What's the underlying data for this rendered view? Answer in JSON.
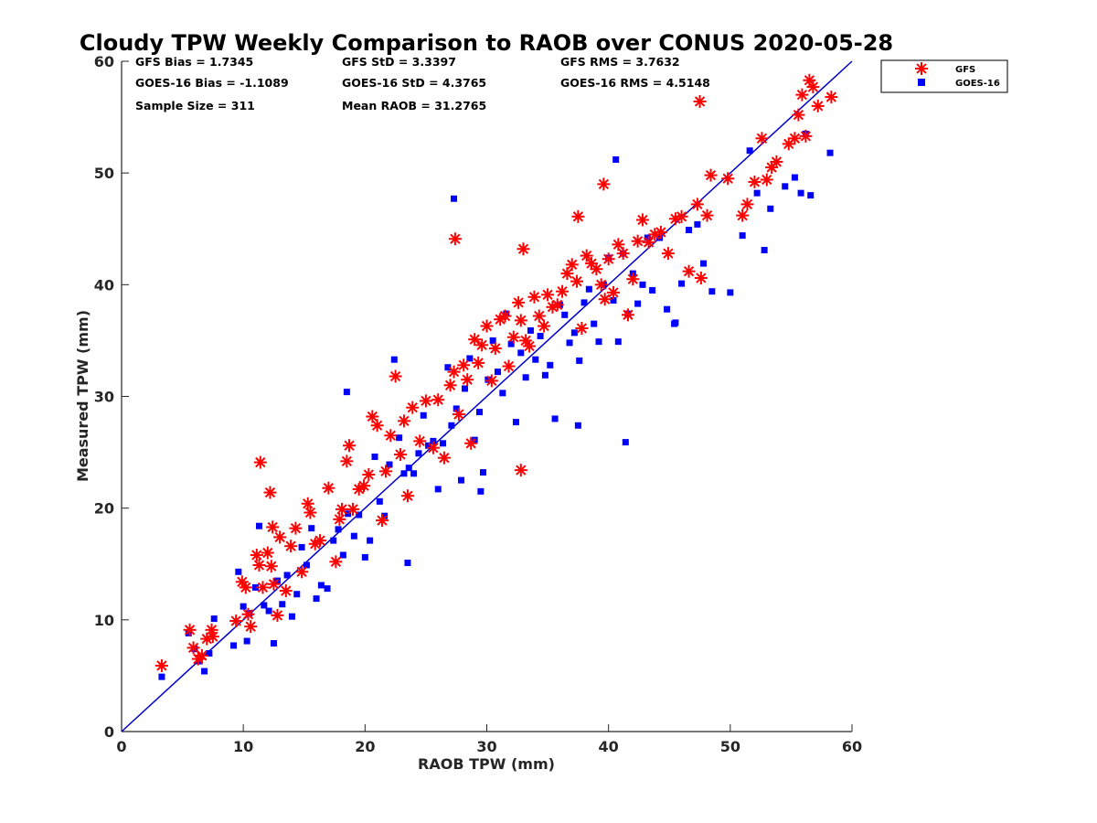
{
  "chart_data": {
    "type": "scatter",
    "title": "Cloudy TPW Weekly Comparison to RAOB over CONUS 2020-05-28",
    "xlabel": "RAOB TPW (mm)",
    "ylabel": "Measured TPW (mm)",
    "xlim": [
      0,
      60
    ],
    "ylim": [
      0,
      60
    ],
    "xticks": [
      "0",
      "10",
      "20",
      "30",
      "40",
      "50",
      "60"
    ],
    "yticks": [
      "0",
      "10",
      "20",
      "30",
      "40",
      "50",
      "60"
    ],
    "grid": false,
    "legend_position": "outside-top-right",
    "stats": [
      [
        "GFS Bias = 1.7345",
        "GFS StD = 3.3397",
        "GFS RMS = 3.7632"
      ],
      [
        "GOES-16 Bias = -1.1089",
        "GOES-16 StD = 4.3765",
        "GOES-16 RMS = 4.5148"
      ],
      [
        "Sample Size = 311",
        "Mean RAOB = 31.2765",
        ""
      ]
    ],
    "reference_line": {
      "from": [
        0,
        0
      ],
      "to": [
        60,
        60
      ],
      "color": "#0000cc"
    },
    "series": [
      {
        "name": "GFS",
        "marker": "asterisk",
        "color": "#ff0000",
        "x": [
          3.3,
          5.6,
          5.9,
          6.3,
          6.6,
          7.0,
          7.4,
          7.5,
          9.4,
          9.9,
          10.2,
          10.4,
          10.6,
          11.1,
          11.3,
          11.6,
          12.0,
          12.3,
          12.4,
          12.5,
          12.8,
          13.0,
          13.5,
          13.9,
          14.3,
          14.8,
          15.3,
          15.5,
          15.9,
          16.3,
          17.0,
          17.6,
          17.9,
          18.1,
          18.5,
          18.7,
          19.0,
          19.5,
          19.9,
          20.3,
          20.6,
          21.0,
          21.4,
          21.7,
          22.1,
          22.5,
          22.9,
          23.2,
          23.5,
          23.9,
          24.5,
          25.0,
          25.6,
          26.0,
          26.5,
          27.0,
          27.3,
          27.7,
          28.1,
          28.4,
          28.7,
          29.0,
          29.3,
          29.6,
          30.0,
          30.4,
          30.7,
          31.1,
          31.5,
          31.8,
          32.2,
          32.6,
          32.8,
          33.2,
          33.5,
          33.9,
          34.3,
          34.7,
          35.0,
          35.4,
          35.8,
          36.2,
          36.6,
          37.0,
          37.4,
          37.8,
          38.2,
          38.6,
          39.0,
          39.4,
          39.7,
          40.0,
          40.4,
          40.8,
          41.2,
          41.6,
          42.0,
          42.4,
          42.8,
          43.3,
          43.8,
          44.3,
          44.9,
          45.5,
          46.0,
          46.6,
          47.3,
          47.6,
          48.1,
          48.4,
          49.8,
          51.0,
          51.4,
          52.0,
          52.6,
          53.0,
          53.4,
          53.8,
          54.8,
          55.3,
          55.6,
          55.9,
          56.2,
          56.5,
          56.8,
          57.2,
          58.3,
          11.4,
          12.2,
          27.4,
          47.5,
          32.8,
          37.5,
          33.0,
          39.6
        ],
        "y": [
          5.9,
          9.1,
          7.5,
          6.5,
          6.8,
          8.3,
          9.1,
          8.5,
          9.9,
          13.4,
          12.9,
          10.5,
          9.4,
          15.8,
          14.9,
          12.9,
          16.0,
          14.8,
          18.3,
          13.2,
          10.4,
          17.4,
          12.6,
          16.6,
          18.2,
          14.3,
          20.4,
          19.6,
          16.8,
          17.1,
          21.8,
          15.2,
          19.0,
          19.9,
          24.2,
          25.6,
          19.9,
          21.7,
          22.0,
          23.0,
          28.2,
          27.4,
          18.9,
          23.3,
          26.5,
          31.8,
          24.8,
          27.8,
          21.1,
          29.0,
          26.0,
          29.6,
          25.4,
          29.7,
          24.5,
          31.0,
          32.2,
          28.4,
          32.8,
          31.5,
          25.8,
          35.1,
          33.0,
          34.6,
          36.3,
          31.4,
          34.3,
          36.9,
          37.2,
          32.7,
          35.3,
          38.4,
          36.8,
          35.0,
          34.5,
          38.9,
          37.2,
          36.3,
          39.1,
          38.0,
          38.2,
          39.4,
          41.0,
          41.8,
          40.3,
          36.1,
          42.6,
          41.9,
          41.4,
          40.0,
          38.7,
          42.3,
          39.3,
          43.6,
          42.8,
          37.3,
          40.5,
          43.9,
          45.8,
          43.8,
          44.5,
          44.7,
          42.8,
          45.9,
          46.1,
          41.2,
          47.2,
          40.6,
          46.2,
          49.8,
          49.5,
          46.2,
          47.2,
          49.2,
          53.1,
          49.4,
          50.5,
          51.0,
          52.6,
          53.1,
          55.2,
          57.0,
          53.3,
          58.3,
          57.7,
          56.0,
          56.8,
          24.1,
          21.4,
          44.1,
          56.4,
          23.4,
          46.1,
          43.2,
          49.0
        ]
      },
      {
        "name": "GOES-16",
        "marker": "square",
        "color": "#0000ff",
        "x": [
          3.3,
          5.5,
          6.0,
          6.4,
          6.8,
          7.2,
          7.6,
          9.2,
          9.6,
          10.0,
          10.3,
          10.5,
          11.0,
          11.3,
          11.7,
          12.1,
          12.5,
          12.8,
          13.2,
          13.6,
          14.0,
          14.4,
          14.8,
          15.2,
          15.6,
          16.0,
          16.4,
          16.9,
          17.4,
          17.8,
          18.2,
          18.6,
          19.1,
          19.5,
          20.0,
          20.4,
          20.8,
          21.2,
          21.6,
          22.0,
          22.4,
          22.8,
          23.2,
          23.6,
          24.0,
          24.4,
          24.8,
          25.2,
          25.6,
          26.0,
          26.4,
          26.8,
          27.1,
          27.5,
          27.9,
          28.2,
          28.6,
          29.0,
          29.4,
          29.7,
          30.1,
          30.5,
          30.9,
          31.3,
          31.6,
          32.0,
          32.4,
          32.8,
          33.2,
          33.6,
          34.0,
          34.4,
          34.8,
          35.2,
          35.6,
          36.0,
          36.4,
          36.8,
          37.2,
          37.6,
          38.0,
          38.4,
          38.8,
          39.2,
          39.6,
          40.0,
          40.4,
          40.8,
          41.2,
          41.6,
          42.0,
          42.4,
          42.8,
          43.2,
          43.6,
          44.2,
          44.8,
          45.4,
          46.0,
          46.6,
          47.3,
          47.8,
          48.5,
          50.0,
          51.0,
          51.6,
          52.2,
          52.8,
          53.3,
          54.5,
          55.3,
          55.8,
          56.2,
          56.6,
          58.2,
          18.5,
          27.3,
          40.6,
          41.4,
          23.5,
          29.5,
          37.5,
          45.5
        ],
        "y": [
          4.9,
          8.8,
          7.4,
          6.3,
          5.4,
          7.0,
          10.1,
          7.7,
          14.3,
          11.2,
          8.1,
          10.6,
          12.9,
          18.4,
          11.3,
          10.8,
          7.9,
          13.5,
          11.4,
          14.0,
          10.3,
          12.3,
          16.5,
          14.9,
          18.2,
          11.9,
          13.1,
          12.8,
          17.1,
          18.1,
          15.8,
          19.5,
          17.5,
          19.4,
          15.6,
          17.1,
          24.6,
          20.6,
          19.3,
          23.9,
          33.3,
          26.3,
          23.1,
          23.6,
          23.1,
          24.9,
          28.3,
          25.6,
          26.0,
          21.7,
          25.8,
          32.6,
          27.4,
          28.9,
          22.5,
          30.7,
          33.4,
          26.1,
          28.6,
          23.2,
          31.5,
          35.0,
          32.2,
          30.3,
          37.4,
          34.7,
          27.7,
          33.9,
          31.7,
          35.9,
          33.3,
          35.4,
          31.9,
          32.8,
          28.0,
          38.2,
          37.3,
          34.8,
          35.7,
          33.2,
          38.4,
          39.6,
          36.5,
          34.9,
          40.0,
          42.4,
          38.6,
          34.9,
          42.8,
          37.4,
          41.0,
          38.3,
          40.0,
          44.2,
          39.5,
          44.2,
          37.8,
          36.5,
          40.1,
          44.9,
          45.4,
          41.9,
          39.4,
          39.3,
          44.4,
          52.0,
          48.2,
          43.1,
          46.8,
          48.8,
          49.6,
          48.2,
          53.5,
          48.0,
          51.8,
          30.4,
          47.7,
          51.2,
          25.9,
          15.1,
          21.5,
          27.4,
          36.6
        ]
      }
    ]
  }
}
